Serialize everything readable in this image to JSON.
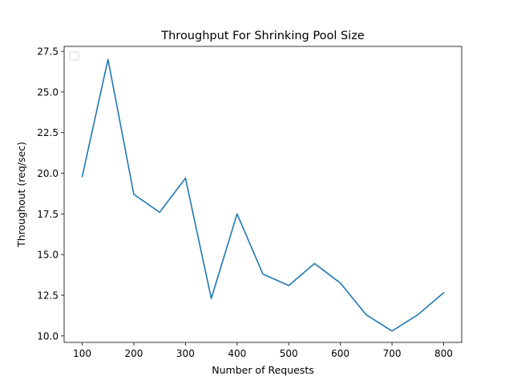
{
  "chart_data": {
    "type": "line",
    "title": "Throughput For Shrinking Pool Size",
    "xlabel": "Number of Requests",
    "ylabel": "Throughout (req/sec)",
    "xlim": [
      65,
      835
    ],
    "ylim": [
      9.6,
      27.8
    ],
    "xticks": [
      100,
      200,
      300,
      400,
      500,
      600,
      700,
      800
    ],
    "yticks": [
      10.0,
      12.5,
      15.0,
      17.5,
      20.0,
      22.5,
      25.0,
      27.5
    ],
    "ytick_labels": [
      "10.0",
      "12.5",
      "15.0",
      "17.5",
      "20.0",
      "22.5",
      "25.0",
      "27.5"
    ],
    "grid": false,
    "legend": "top-left (empty)",
    "series": [
      {
        "color": "#1f77b4",
        "x": [
          100,
          150,
          200,
          250,
          300,
          350,
          400,
          450,
          500,
          550,
          600,
          650,
          700,
          750,
          800
        ],
        "y": [
          19.8,
          27.0,
          18.7,
          17.6,
          19.7,
          12.3,
          17.5,
          13.8,
          13.1,
          14.45,
          13.25,
          11.3,
          10.3,
          11.3,
          12.65
        ]
      }
    ]
  }
}
